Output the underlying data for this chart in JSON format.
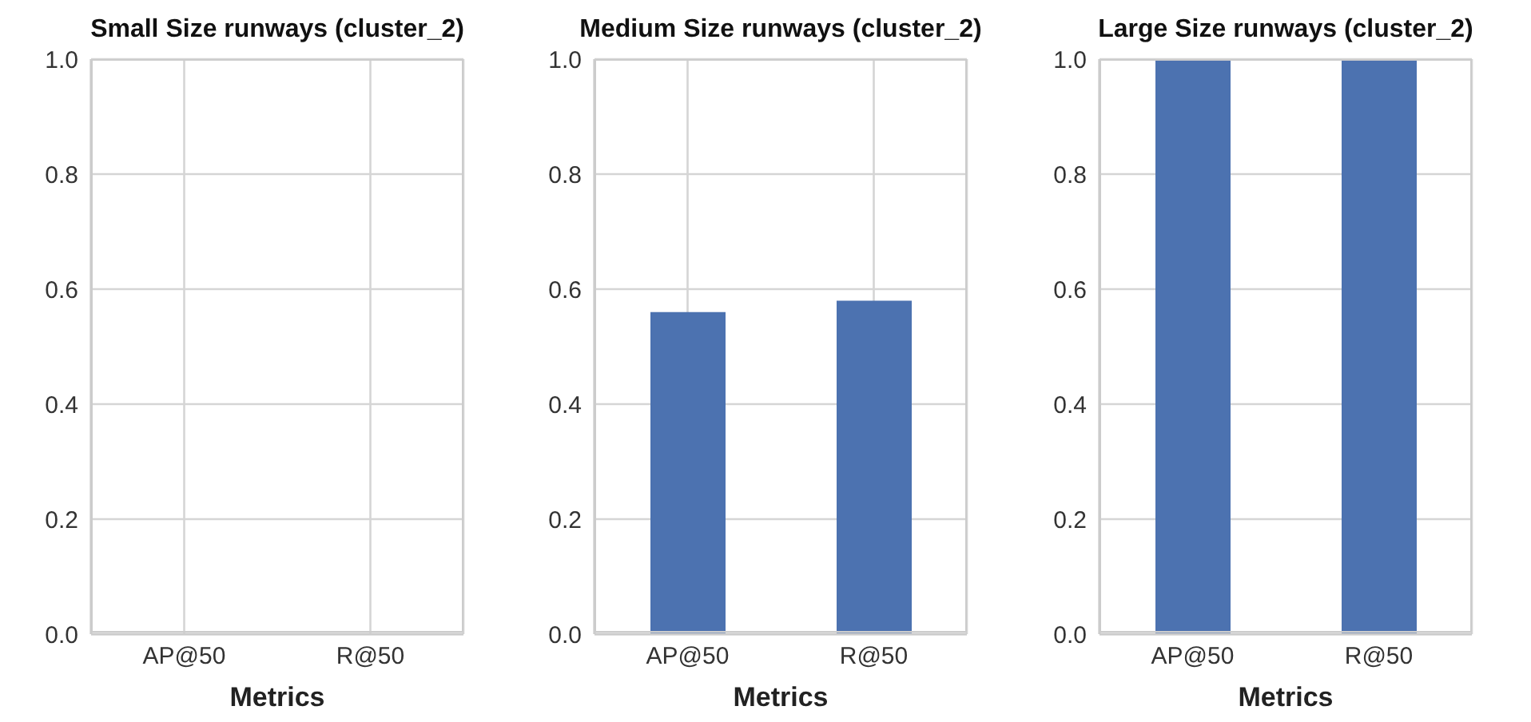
{
  "chart_data": [
    {
      "type": "bar",
      "title": "Small Size runways (cluster_2)",
      "xlabel": "Metrics",
      "categories": [
        "AP@50",
        "R@50"
      ],
      "values": [
        0,
        0
      ],
      "color": "#4c72b0",
      "ylim": [
        0,
        1
      ],
      "yticks": [
        {
          "value": 0,
          "label": "0.0"
        },
        {
          "value": 0.2,
          "label": "0.2"
        },
        {
          "value": 0.4,
          "label": "0.4"
        },
        {
          "value": 0.6,
          "label": "0.6"
        },
        {
          "value": 0.8,
          "label": "0.8"
        },
        {
          "value": 1,
          "label": "1.0"
        }
      ],
      "grid": true
    },
    {
      "type": "bar",
      "title": "Medium Size runways (cluster_2)",
      "xlabel": "Metrics",
      "categories": [
        "AP@50",
        "R@50"
      ],
      "values": [
        0.56,
        0.58
      ],
      "color": "#4c72b0",
      "ylim": [
        0,
        1
      ],
      "yticks": [
        {
          "value": 0,
          "label": "0.0"
        },
        {
          "value": 0.2,
          "label": "0.2"
        },
        {
          "value": 0.4,
          "label": "0.4"
        },
        {
          "value": 0.6,
          "label": "0.6"
        },
        {
          "value": 0.8,
          "label": "0.8"
        },
        {
          "value": 1,
          "label": "1.0"
        }
      ],
      "grid": true
    },
    {
      "type": "bar",
      "title": "Large Size runways (cluster_2)",
      "xlabel": "Metrics",
      "categories": [
        "AP@50",
        "R@50"
      ],
      "values": [
        1,
        1
      ],
      "color": "#4c72b0",
      "ylim": [
        0,
        1
      ],
      "yticks": [
        {
          "value": 0,
          "label": "0.0"
        },
        {
          "value": 0.2,
          "label": "0.2"
        },
        {
          "value": 0.4,
          "label": "0.4"
        },
        {
          "value": 0.6,
          "label": "0.6"
        },
        {
          "value": 0.8,
          "label": "0.8"
        },
        {
          "value": 1,
          "label": "1.0"
        }
      ],
      "grid": true
    }
  ]
}
